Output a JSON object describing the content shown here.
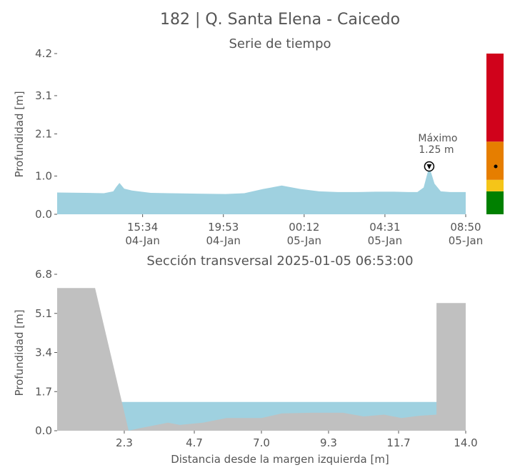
{
  "figure_title": "182 | Q. Santa Elena - Caicedo",
  "chart_data": [
    {
      "type": "area",
      "title": "Serie de tiempo",
      "ylabel": "Profundidad [m]",
      "xlabel": "",
      "ylim": [
        0,
        4.2
      ],
      "yticks": [
        0.0,
        1.0,
        2.1,
        3.1,
        4.2
      ],
      "ytick_labels": [
        "0.0",
        "1.0",
        "2.1",
        "3.1",
        "4.2"
      ],
      "xticks": [
        {
          "t": "2025-01-04 15:34",
          "time": "15:34",
          "date": "04-Jan"
        },
        {
          "t": "2025-01-04 19:53",
          "time": "19:53",
          "date": "04-Jan"
        },
        {
          "t": "2025-01-05 00:12",
          "time": "00:12",
          "date": "05-Jan"
        },
        {
          "t": "2025-01-05 04:31",
          "time": "04:31",
          "date": "05-Jan"
        },
        {
          "t": "2025-01-05 08:50",
          "time": "08:50",
          "date": "05-Jan"
        }
      ],
      "xlim": [
        "2025-01-04 11:00",
        "2025-01-05 08:50"
      ],
      "fill_color": "#9fd1e0",
      "series": [
        {
          "x": [
            "2025-01-04 11:00",
            "2025-01-04 12:30",
            "2025-01-04 13:30",
            "2025-01-04 14:00",
            "2025-01-04 14:10",
            "2025-01-04 14:20",
            "2025-01-04 14:35",
            "2025-01-04 15:00",
            "2025-01-04 16:00",
            "2025-01-04 17:00",
            "2025-01-04 18:30",
            "2025-01-04 20:00",
            "2025-01-04 21:00",
            "2025-01-04 22:00",
            "2025-01-04 23:00",
            "2025-01-05 00:00",
            "2025-01-05 01:00",
            "2025-01-05 02:00",
            "2025-01-05 03:00",
            "2025-01-05 04:00",
            "2025-01-05 05:00",
            "2025-01-05 05:45",
            "2025-01-05 06:15",
            "2025-01-05 06:35",
            "2025-01-05 06:53",
            "2025-01-05 07:10",
            "2025-01-05 07:30",
            "2025-01-05 08:00",
            "2025-01-05 08:50"
          ],
          "y": [
            0.57,
            0.56,
            0.55,
            0.6,
            0.72,
            0.82,
            0.67,
            0.62,
            0.56,
            0.55,
            0.54,
            0.53,
            0.55,
            0.66,
            0.75,
            0.66,
            0.6,
            0.58,
            0.58,
            0.59,
            0.59,
            0.58,
            0.58,
            0.7,
            1.25,
            0.8,
            0.6,
            0.58,
            0.58
          ]
        }
      ],
      "annotation": {
        "label": "Máximo",
        "value_text": "1.25 m",
        "t": "2025-01-05 06:53",
        "y": 1.25
      },
      "alert_scale": {
        "levels": [
          {
            "from": 0.0,
            "to": 0.6,
            "color": "#008000"
          },
          {
            "from": 0.6,
            "to": 0.9,
            "color": "#f5c518"
          },
          {
            "from": 0.9,
            "to": 1.9,
            "color": "#e67e00"
          },
          {
            "from": 1.9,
            "to": 4.2,
            "color": "#d0021b"
          }
        ],
        "current": 1.25
      }
    },
    {
      "type": "area",
      "title": "Sección transversal 2025-01-05 06:53:00",
      "xlabel": "Distancia desde la margen izquierda [m]",
      "ylabel": "Profundidad [m]",
      "xlim": [
        0.0,
        14.0
      ],
      "ylim": [
        0.0,
        6.8
      ],
      "xticks": [
        2.3,
        4.7,
        7.0,
        9.3,
        11.7,
        14.0
      ],
      "xtick_labels": [
        "2.3",
        "4.7",
        "7.0",
        "9.3",
        "11.7",
        "14.0"
      ],
      "yticks": [
        0.0,
        1.7,
        3.4,
        5.1,
        6.8
      ],
      "ytick_labels": [
        "0.0",
        "1.7",
        "3.4",
        "5.1",
        "6.8"
      ],
      "water_level": 1.25,
      "water_x_range": [
        2.0,
        14.0
      ],
      "water_color": "#9fd1e0",
      "ground_color": "#c0c0c0",
      "ground": {
        "x": [
          0.0,
          1.3,
          2.45,
          2.8,
          3.8,
          4.2,
          5.0,
          5.8,
          7.0,
          7.7,
          8.7,
          9.8,
          10.5,
          11.2,
          11.8,
          12.4,
          13.0,
          13.0,
          14.0
        ],
        "y": [
          6.2,
          6.2,
          0.0,
          0.1,
          0.35,
          0.25,
          0.35,
          0.55,
          0.55,
          0.75,
          0.78,
          0.78,
          0.62,
          0.7,
          0.55,
          0.65,
          0.7,
          5.55,
          5.55
        ]
      }
    }
  ]
}
